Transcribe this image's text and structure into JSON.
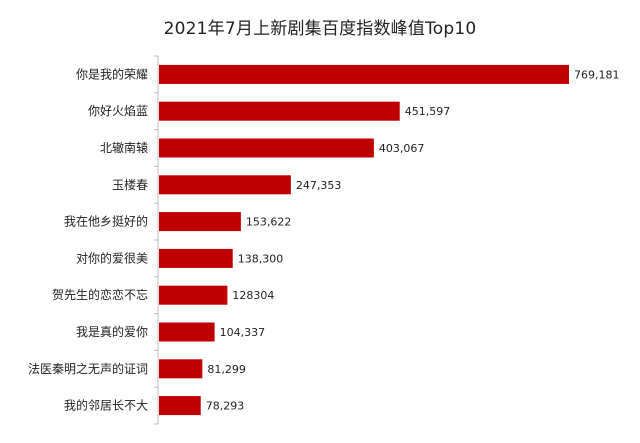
{
  "chart_data": {
    "type": "bar",
    "orientation": "horizontal",
    "title": "2021年7月上新剧集百度指数峰值Top10",
    "categories": [
      "你是我的荣耀",
      "你好火焰蓝",
      "北辙南辕",
      "玉楼春",
      "我在他乡挺好的",
      "对你的爱很美",
      "贺先生的恋恋不忘",
      "我是真的爱你",
      "法医秦明之无声的证词",
      "我的邻居长不大"
    ],
    "values": [
      769181,
      451597,
      403067,
      247353,
      153622,
      138300,
      128304,
      104337,
      81299,
      78293
    ],
    "value_labels": [
      "769,181",
      "451,597",
      "403,067",
      "247,353",
      "153,622",
      "138,300",
      "128304",
      "104,337",
      "81,299",
      "78,293"
    ],
    "xlim": [
      0,
      800000
    ],
    "bar_color": "#c00000",
    "axis_color": "#bfbfbf",
    "grid": false,
    "legend": "none",
    "xlabel": "",
    "ylabel": ""
  }
}
